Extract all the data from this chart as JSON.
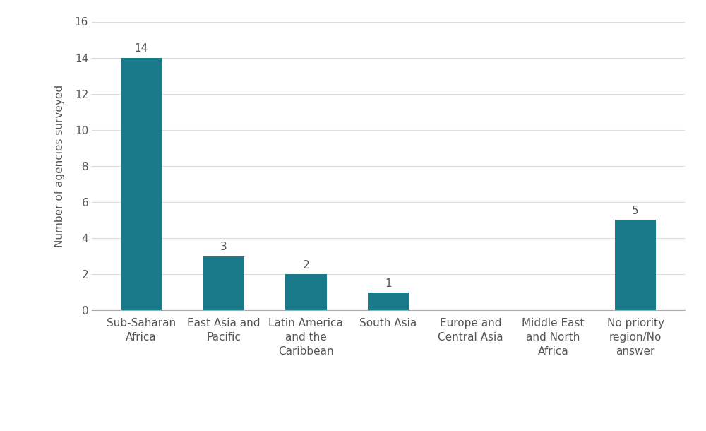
{
  "categories": [
    "Sub-Saharan\nAfrica",
    "East Asia and\nPacific",
    "Latin America\nand the\nCaribbean",
    "South Asia",
    "Europe and\nCentral Asia",
    "Middle East\nand North\nAfrica",
    "No priority\nregion/No\nanswer"
  ],
  "values": [
    14,
    3,
    2,
    1,
    0,
    0,
    5
  ],
  "bar_color": "#1a7a8a",
  "ylabel": "Number of agencies surveyed",
  "ylim": [
    0,
    16
  ],
  "yticks": [
    0,
    2,
    4,
    6,
    8,
    10,
    12,
    14,
    16
  ],
  "background_color": "#ffffff",
  "tick_fontsize": 11,
  "ylabel_fontsize": 11,
  "annotation_fontsize": 11,
  "annotation_color": "#555555",
  "gridline_color": "#dddddd",
  "spine_color": "#aaaaaa",
  "bar_width": 0.5
}
